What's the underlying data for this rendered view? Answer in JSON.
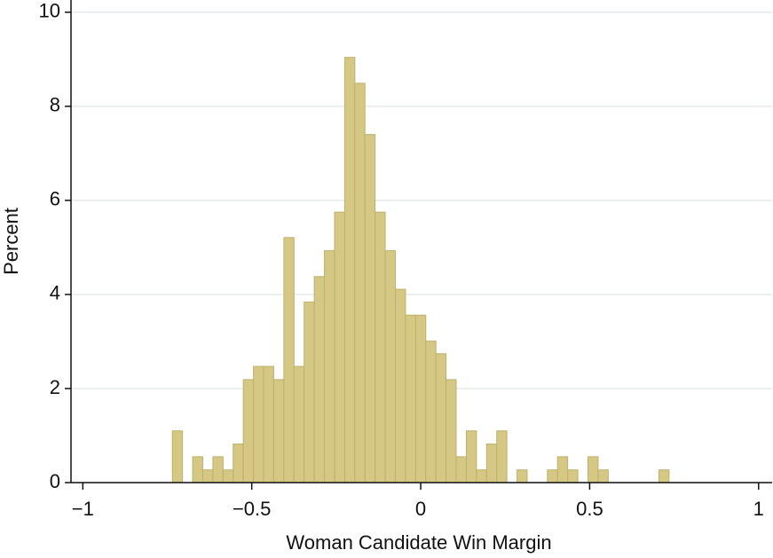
{
  "chart_data": {
    "type": "histogram",
    "xlabel": "Woman Candidate Win Margin",
    "ylabel": "Percent",
    "bins": [
      -0.735,
      -0.705,
      -0.675,
      -0.645,
      -0.615,
      -0.585,
      -0.555,
      -0.525,
      -0.495,
      -0.465,
      -0.435,
      -0.405,
      -0.375,
      -0.345,
      -0.315,
      -0.285,
      -0.255,
      -0.225,
      -0.195,
      -0.165,
      -0.135,
      -0.105,
      -0.075,
      -0.045,
      -0.015,
      0.015,
      0.045,
      0.075,
      0.105,
      0.135,
      0.165,
      0.195,
      0.225,
      0.255,
      0.285,
      0.315,
      0.345,
      0.375,
      0.405,
      0.435,
      0.465,
      0.495,
      0.525,
      0.555,
      0.585,
      0.615,
      0.645,
      0.675,
      0.705,
      0.735
    ],
    "values": [
      1.1,
      0,
      0.55,
      0.27,
      0.55,
      0.27,
      0.82,
      2.19,
      2.47,
      2.47,
      2.19,
      5.21,
      2.47,
      3.84,
      4.38,
      4.93,
      5.75,
      9.04,
      8.49,
      7.4,
      5.75,
      4.93,
      4.11,
      3.56,
      3.56,
      3.01,
      2.74,
      2.19,
      0.55,
      1.1,
      0.27,
      0.82,
      1.1,
      0,
      0.27,
      0,
      0,
      0.27,
      0.55,
      0.27,
      0,
      0.55,
      0.27,
      0,
      0,
      0,
      0,
      0,
      0.27
    ],
    "color": "#d5c884",
    "xlim": [
      -1.035,
      1.04
    ],
    "ylim": [
      0,
      10.26
    ],
    "xticks": [
      {
        "value": -1,
        "label": "−1"
      },
      {
        "value": -0.5,
        "label": "−0.5"
      },
      0,
      0.5,
      1
    ],
    "yticks": [
      0,
      2,
      4,
      6,
      8,
      10
    ],
    "grid": true
  }
}
